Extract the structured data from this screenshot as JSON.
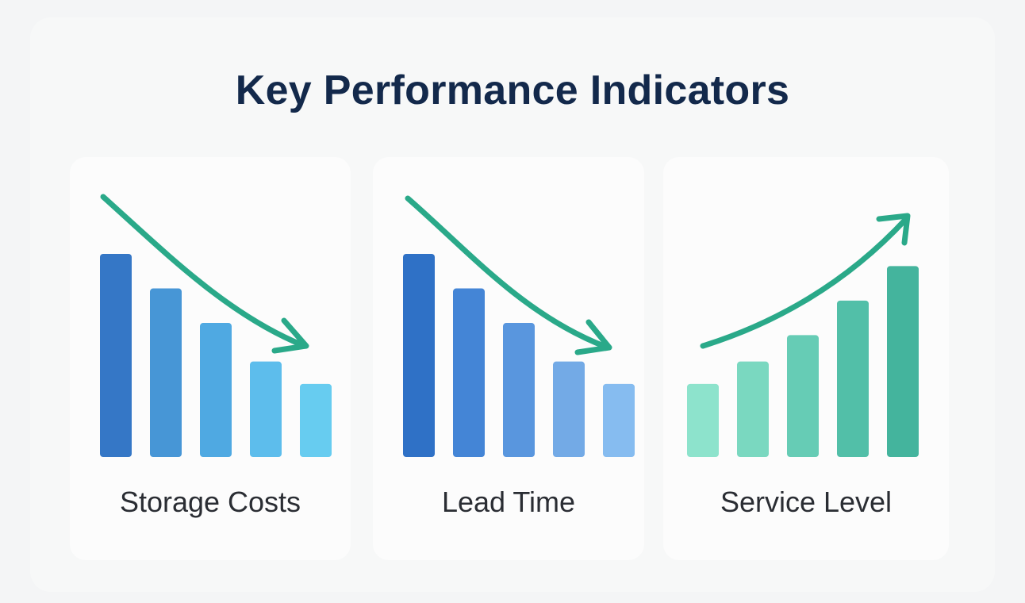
{
  "title": "Key Performance Indicators",
  "colors": {
    "title": "#13294b",
    "arrow": "#2aa989",
    "label": "#2a2d33"
  },
  "chart_data": [
    {
      "type": "bar",
      "label": "Storage Costs",
      "trend": "down",
      "values": [
        100,
        83,
        66,
        47,
        36
      ],
      "colors": [
        "#3577c6",
        "#4796d6",
        "#4fa9e2",
        "#5dbdec",
        "#67ccf0"
      ]
    },
    {
      "type": "bar",
      "label": "Lead Time",
      "trend": "down",
      "values": [
        100,
        83,
        66,
        47,
        36
      ],
      "colors": [
        "#2f71c6",
        "#4485d6",
        "#5996de",
        "#73aae6",
        "#86bcf0"
      ]
    },
    {
      "type": "bar",
      "label": "Service Level",
      "trend": "up",
      "values": [
        36,
        47,
        60,
        77,
        94
      ],
      "colors": [
        "#8de3cc",
        "#7ad8c0",
        "#66ccb5",
        "#52bfa8",
        "#44b49d"
      ]
    }
  ]
}
